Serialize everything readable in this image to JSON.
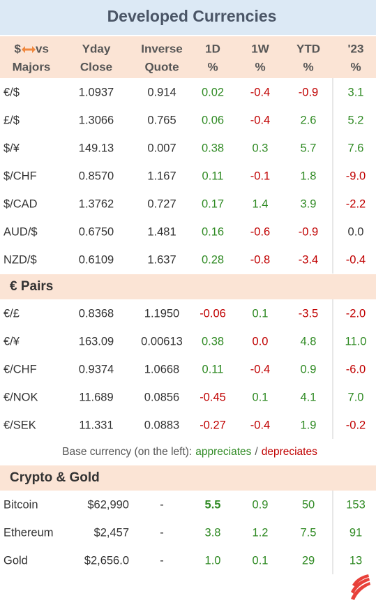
{
  "title": "Developed Currencies",
  "header": {
    "pair": {
      "left": "$",
      "right": "vs",
      "bottom": "Majors"
    },
    "columns": [
      [
        "Yday",
        "Close"
      ],
      [
        "Inverse",
        "Quote"
      ],
      [
        "1D",
        "%"
      ],
      [
        "1W",
        "%"
      ],
      [
        "YTD",
        "%"
      ],
      [
        "'23",
        "%"
      ]
    ]
  },
  "colors": {
    "up": "#2f8a23",
    "down": "#c00000",
    "flat": "#333333"
  },
  "sections": [
    {
      "rows": [
        {
          "pair": "€/$",
          "cells": [
            "1.0937",
            "0.914",
            "0.02",
            "-0.4",
            "-0.9",
            "3.1"
          ],
          "tones": [
            "flat",
            "flat",
            "up",
            "down",
            "down",
            "up"
          ]
        },
        {
          "pair": "£/$",
          "cells": [
            "1.3066",
            "0.765",
            "0.06",
            "-0.4",
            "2.6",
            "5.2"
          ],
          "tones": [
            "flat",
            "flat",
            "up",
            "down",
            "up",
            "up"
          ]
        },
        {
          "pair": "$/¥",
          "cells": [
            "149.13",
            "0.007",
            "0.38",
            "0.3",
            "5.7",
            "7.6"
          ],
          "tones": [
            "flat",
            "flat",
            "up",
            "up",
            "up",
            "up"
          ]
        },
        {
          "pair": "$/CHF",
          "cells": [
            "0.8570",
            "1.167",
            "0.11",
            "-0.1",
            "1.8",
            "-9.0"
          ],
          "tones": [
            "flat",
            "flat",
            "up",
            "down",
            "up",
            "down"
          ]
        },
        {
          "pair": "$/CAD",
          "cells": [
            "1.3762",
            "0.727",
            "0.17",
            "1.4",
            "3.9",
            "-2.2"
          ],
          "tones": [
            "flat",
            "flat",
            "up",
            "up",
            "up",
            "down"
          ]
        },
        {
          "pair": "AUD/$",
          "cells": [
            "0.6750",
            "1.481",
            "0.16",
            "-0.6",
            "-0.9",
            "0.0"
          ],
          "tones": [
            "flat",
            "flat",
            "up",
            "down",
            "down",
            "flat"
          ]
        },
        {
          "pair": "NZD/$",
          "cells": [
            "0.6109",
            "1.637",
            "0.28",
            "-0.8",
            "-3.4",
            "-0.4"
          ],
          "tones": [
            "flat",
            "flat",
            "up",
            "down",
            "down",
            "down"
          ]
        }
      ]
    },
    {
      "label": "€ Pairs",
      "rows": [
        {
          "pair": "€/£",
          "cells": [
            "0.8368",
            "1.1950",
            "-0.06",
            "0.1",
            "-3.5",
            "-2.0"
          ],
          "tones": [
            "flat",
            "flat",
            "down",
            "up",
            "down",
            "down"
          ]
        },
        {
          "pair": "€/¥",
          "cells": [
            "163.09",
            "0.00613",
            "0.38",
            "0.0",
            "4.8",
            "11.0"
          ],
          "tones": [
            "flat",
            "flat",
            "up",
            "down",
            "up",
            "up"
          ]
        },
        {
          "pair": "€/CHF",
          "cells": [
            "0.9374",
            "1.0668",
            "0.11",
            "-0.4",
            "0.9",
            "-6.0"
          ],
          "tones": [
            "flat",
            "flat",
            "up",
            "down",
            "up",
            "down"
          ]
        },
        {
          "pair": "€/NOK",
          "cells": [
            "11.689",
            "0.0856",
            "-0.45",
            "0.1",
            "4.1",
            "7.0"
          ],
          "tones": [
            "flat",
            "flat",
            "down",
            "up",
            "up",
            "up"
          ]
        },
        {
          "pair": "€/SEK",
          "cells": [
            "11.331",
            "0.0883",
            "-0.27",
            "-0.4",
            "1.9",
            "-0.2"
          ],
          "tones": [
            "flat",
            "flat",
            "down",
            "down",
            "up",
            "down"
          ]
        }
      ],
      "note": {
        "text": "Base currency (on the left):",
        "up": "appreciates",
        "sep": "/",
        "down": "depreciates"
      }
    },
    {
      "label": "Crypto & Gold",
      "rows": [
        {
          "pair": "Bitcoin",
          "cells": [
            "$62,990",
            "-",
            "5.5",
            "0.9",
            "50",
            "153"
          ],
          "tones": [
            "flat",
            "flat",
            "up",
            "up",
            "up",
            "up"
          ],
          "bold": 2
        },
        {
          "pair": "Ethereum",
          "cells": [
            "$2,457",
            "-",
            "3.8",
            "1.2",
            "7.5",
            "91"
          ],
          "tones": [
            "flat",
            "flat",
            "up",
            "up",
            "up",
            "up"
          ]
        },
        {
          "pair": "Gold",
          "cells": [
            "$2,656.0",
            "-",
            "1.0",
            "0.1",
            "29",
            "13"
          ],
          "tones": [
            "flat",
            "flat",
            "up",
            "up",
            "up",
            "up"
          ]
        }
      ]
    }
  ]
}
